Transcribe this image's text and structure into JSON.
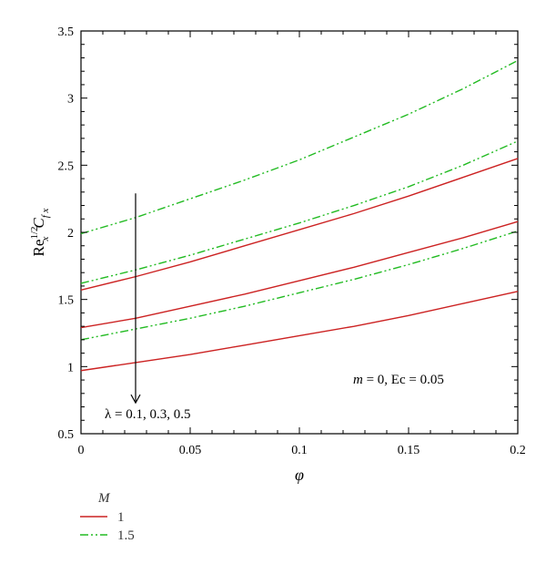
{
  "chart_data": {
    "type": "line",
    "xlabel": "φ",
    "ylabel": {
      "base": "Re",
      "sub": "x",
      "sup": "1/2",
      "cf": "C",
      "cf_sub": "f x"
    },
    "xlim": [
      0,
      0.2
    ],
    "ylim": [
      0.5,
      3.5
    ],
    "x_ticks": [
      0,
      0.05,
      0.1,
      0.15,
      0.2
    ],
    "x_tick_labels": [
      "0",
      "0.05",
      "0.1",
      "0.15",
      "0.2"
    ],
    "y_ticks": [
      0.5,
      1,
      1.5,
      2,
      2.5,
      3,
      3.5
    ],
    "y_tick_labels": [
      "0.5",
      "1",
      "1.5",
      "2",
      "2.5",
      "3",
      "3.5"
    ],
    "x": [
      0,
      0.025,
      0.05,
      0.075,
      0.1,
      0.125,
      0.15,
      0.175,
      0.2
    ],
    "series": [
      {
        "group": "1",
        "style": "solid",
        "color": "#cc2222",
        "values": [
          1.57,
          1.67,
          1.78,
          1.9,
          2.02,
          2.14,
          2.27,
          2.41,
          2.55
        ]
      },
      {
        "group": "1",
        "style": "solid",
        "color": "#cc2222",
        "values": [
          1.29,
          1.36,
          1.45,
          1.54,
          1.64,
          1.74,
          1.85,
          1.96,
          2.08
        ]
      },
      {
        "group": "1",
        "style": "solid",
        "color": "#cc2222",
        "values": [
          0.97,
          1.03,
          1.09,
          1.16,
          1.23,
          1.3,
          1.38,
          1.47,
          1.56
        ]
      },
      {
        "group": "1.5",
        "style": "dashdotdot",
        "color": "#22bb22",
        "values": [
          1.99,
          2.11,
          2.25,
          2.39,
          2.54,
          2.71,
          2.88,
          3.07,
          3.28
        ]
      },
      {
        "group": "1.5",
        "style": "dashdotdot",
        "color": "#22bb22",
        "values": [
          1.62,
          1.72,
          1.83,
          1.95,
          2.07,
          2.2,
          2.34,
          2.5,
          2.68
        ]
      },
      {
        "group": "1.5",
        "style": "dashdotdot",
        "color": "#22bb22",
        "values": [
          1.2,
          1.28,
          1.36,
          1.45,
          1.55,
          1.65,
          1.76,
          1.88,
          2.01
        ]
      }
    ],
    "arrow": {
      "x": 0.025,
      "y_start": 2.29,
      "y_end": 0.73
    },
    "annotations": {
      "lambda": "λ = 0.1, 0.3, 0.5",
      "params": "m = 0, Ec = 0.05"
    },
    "legend": {
      "title": "M",
      "entries": [
        {
          "label": "1",
          "color": "#cc2222",
          "style": "solid"
        },
        {
          "label": "1.5",
          "color": "#22bb22",
          "style": "dashdotdot"
        }
      ],
      "placement": "bottom-left, below plot"
    },
    "grid": false
  }
}
